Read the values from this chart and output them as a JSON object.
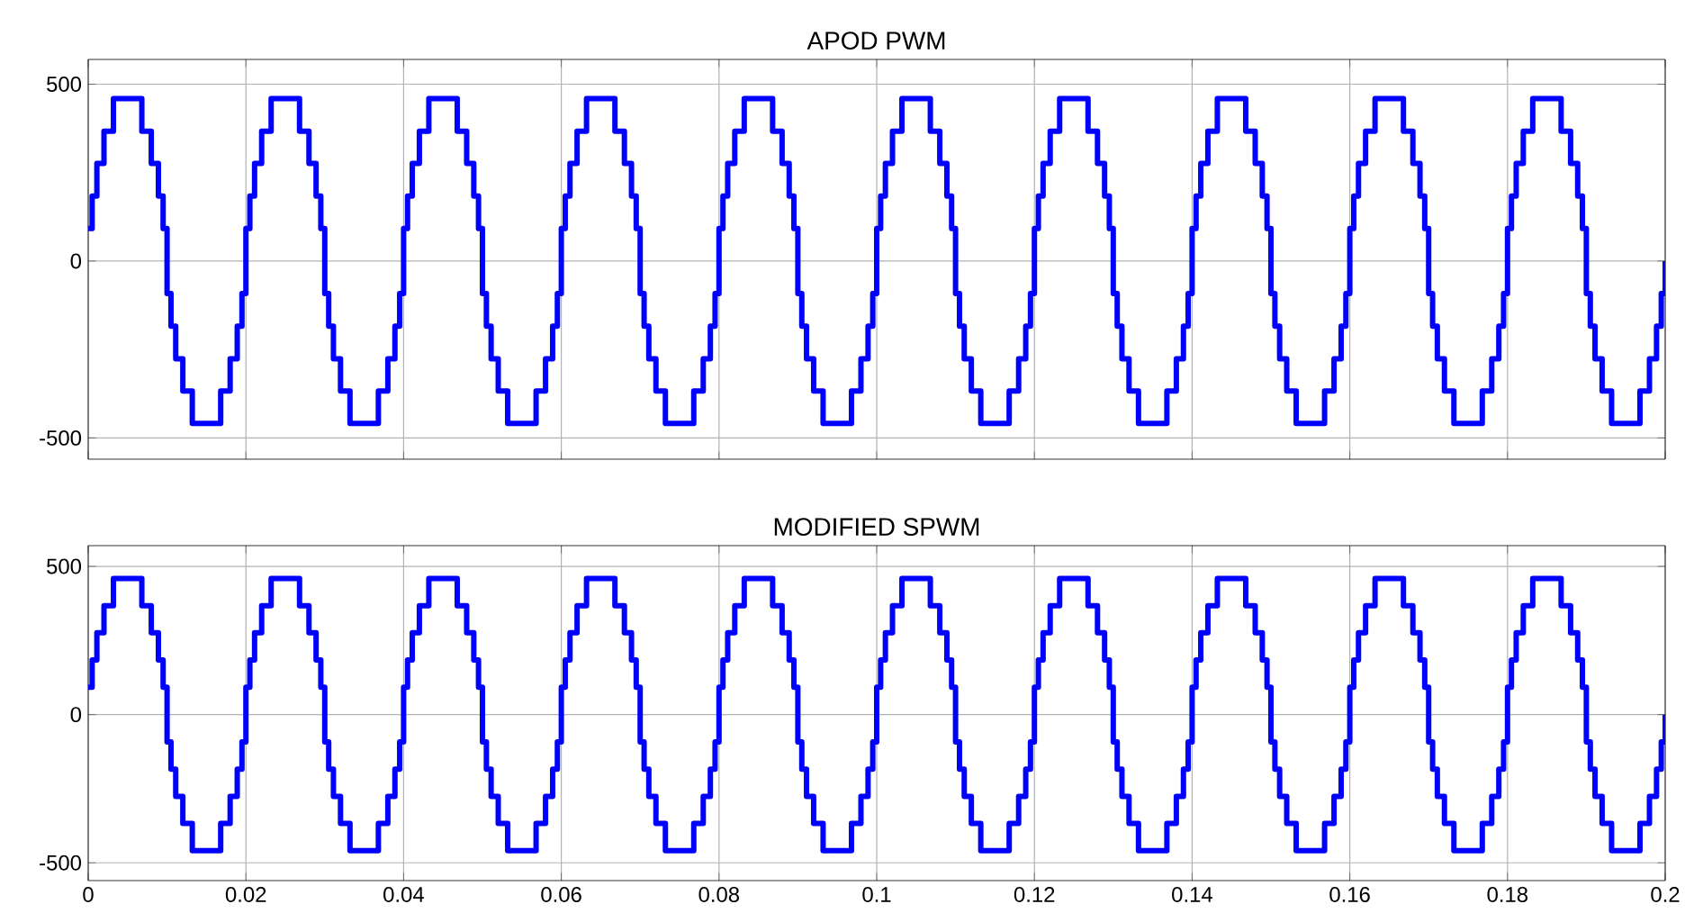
{
  "chart_data": [
    {
      "type": "step",
      "title": "APOD PWM",
      "xlim": [
        0,
        0.2
      ],
      "ylim": [
        -560,
        570
      ],
      "xticks": [
        0,
        0.02,
        0.04,
        0.06,
        0.08,
        0.1,
        0.12,
        0.14,
        0.16,
        0.18,
        0.2
      ],
      "yticks": [
        -500,
        0,
        500
      ],
      "grid": true,
      "tick_labels": "y",
      "marker": "none",
      "line_style": "solid",
      "series": [
        {
          "color": "#0000ff",
          "x": [
            0,
            0.0005,
            0.0011,
            0.002,
            0.0032,
            0.0068,
            0.008,
            0.0089,
            0.0095,
            0.01,
            0.0105,
            0.0111,
            0.012,
            0.0132,
            0.0168,
            0.018,
            0.0189,
            0.0195,
            0.02,
            0.0205,
            0.0211,
            0.022,
            0.0232,
            0.0268,
            0.028,
            0.0289,
            0.0295,
            0.03,
            0.0305,
            0.0311,
            0.032,
            0.0332,
            0.0368,
            0.038,
            0.0389,
            0.0395,
            0.04,
            0.0405,
            0.0411,
            0.042,
            0.0432,
            0.0468,
            0.048,
            0.0489,
            0.0495,
            0.05,
            0.0505,
            0.0511,
            0.052,
            0.0532,
            0.0568,
            0.058,
            0.0589,
            0.0595,
            0.06,
            0.0605,
            0.0611,
            0.062,
            0.0632,
            0.0668,
            0.068,
            0.0689,
            0.0695,
            0.07,
            0.0705,
            0.0711,
            0.072,
            0.0732,
            0.0768,
            0.078,
            0.0789,
            0.0795,
            0.08,
            0.0805,
            0.0811,
            0.082,
            0.0832,
            0.0868,
            0.088,
            0.0889,
            0.0895,
            0.09,
            0.0905,
            0.0911,
            0.092,
            0.0932,
            0.0968,
            0.098,
            0.0989,
            0.0995,
            0.1,
            0.1005,
            0.1011,
            0.102,
            0.1032,
            0.1068,
            0.108,
            0.1089,
            0.1095,
            0.11,
            0.1105,
            0.1111,
            0.112,
            0.1132,
            0.1168,
            0.118,
            0.1189,
            0.1195,
            0.12,
            0.1205,
            0.1211,
            0.122,
            0.1232,
            0.1268,
            0.128,
            0.1289,
            0.1295,
            0.13,
            0.1305,
            0.1311,
            0.132,
            0.1332,
            0.1368,
            0.138,
            0.1389,
            0.1395,
            0.14,
            0.1405,
            0.1411,
            0.142,
            0.1432,
            0.1468,
            0.148,
            0.1489,
            0.1495,
            0.15,
            0.1505,
            0.1511,
            0.152,
            0.1532,
            0.1568,
            0.158,
            0.1589,
            0.1595,
            0.16,
            0.1605,
            0.1611,
            0.162,
            0.1632,
            0.1668,
            0.168,
            0.1689,
            0.1695,
            0.17,
            0.1705,
            0.1711,
            0.172,
            0.1732,
            0.1768,
            0.178,
            0.1789,
            0.1795,
            0.18,
            0.1805,
            0.1811,
            0.182,
            0.1832,
            0.1868,
            0.188,
            0.1889,
            0.1895,
            0.19,
            0.1905,
            0.1911,
            0.192,
            0.1932,
            0.1968,
            0.198,
            0.1989,
            0.1995,
            0.2
          ],
          "values": [
            92,
            184,
            276,
            367,
            459,
            367,
            276,
            184,
            92,
            -92,
            -184,
            -276,
            -367,
            -459,
            -367,
            -276,
            -184,
            -92,
            92,
            184,
            276,
            367,
            459,
            367,
            276,
            184,
            92,
            -92,
            -184,
            -276,
            -367,
            -459,
            -367,
            -276,
            -184,
            -92,
            92,
            184,
            276,
            367,
            459,
            367,
            276,
            184,
            92,
            -92,
            -184,
            -276,
            -367,
            -459,
            -367,
            -276,
            -184,
            -92,
            92,
            184,
            276,
            367,
            459,
            367,
            276,
            184,
            92,
            -92,
            -184,
            -276,
            -367,
            -459,
            -367,
            -276,
            -184,
            -92,
            92,
            184,
            276,
            367,
            459,
            367,
            276,
            184,
            92,
            -92,
            -184,
            -276,
            -367,
            -459,
            -367,
            -276,
            -184,
            -92,
            92,
            184,
            276,
            367,
            459,
            367,
            276,
            184,
            92,
            -92,
            -184,
            -276,
            -367,
            -459,
            -367,
            -276,
            -184,
            -92,
            92,
            184,
            276,
            367,
            459,
            367,
            276,
            184,
            92,
            -92,
            -184,
            -276,
            -367,
            -459,
            -367,
            -276,
            -184,
            -92,
            92,
            184,
            276,
            367,
            459,
            367,
            276,
            184,
            92,
            -92,
            -184,
            -276,
            -367,
            -459,
            -367,
            -276,
            -184,
            -92,
            92,
            184,
            276,
            367,
            459,
            367,
            276,
            184,
            92,
            -92,
            -184,
            -276,
            -367,
            -459,
            -367,
            -276,
            -184,
            -92,
            92,
            184,
            276,
            367,
            459,
            367,
            276,
            184,
            92,
            -92,
            -184,
            -276,
            -367,
            -459,
            -367,
            -276,
            -184,
            -92,
            0
          ]
        }
      ]
    },
    {
      "type": "step",
      "title": "MODIFIED SPWM",
      "xlim": [
        0,
        0.2
      ],
      "ylim": [
        -560,
        570
      ],
      "xticks": [
        0,
        0.02,
        0.04,
        0.06,
        0.08,
        0.1,
        0.12,
        0.14,
        0.16,
        0.18,
        0.2
      ],
      "yticks": [
        -500,
        0,
        500
      ],
      "grid": true,
      "marker": "none",
      "line_style": "solid",
      "series": [
        {
          "color": "#0000ff",
          "x": [
            0,
            0.0005,
            0.0011,
            0.002,
            0.0032,
            0.0068,
            0.008,
            0.0089,
            0.0095,
            0.01,
            0.0105,
            0.0111,
            0.012,
            0.0132,
            0.0168,
            0.018,
            0.0189,
            0.0195,
            0.02,
            0.0205,
            0.0211,
            0.022,
            0.0232,
            0.0268,
            0.028,
            0.0289,
            0.0295,
            0.03,
            0.0305,
            0.0311,
            0.032,
            0.0332,
            0.0368,
            0.038,
            0.0389,
            0.0395,
            0.04,
            0.0405,
            0.0411,
            0.042,
            0.0432,
            0.0468,
            0.048,
            0.0489,
            0.0495,
            0.05,
            0.0505,
            0.0511,
            0.052,
            0.0532,
            0.0568,
            0.058,
            0.0589,
            0.0595,
            0.06,
            0.0605,
            0.0611,
            0.062,
            0.0632,
            0.0668,
            0.068,
            0.0689,
            0.0695,
            0.07,
            0.0705,
            0.0711,
            0.072,
            0.0732,
            0.0768,
            0.078,
            0.0789,
            0.0795,
            0.08,
            0.0805,
            0.0811,
            0.082,
            0.0832,
            0.0868,
            0.088,
            0.0889,
            0.0895,
            0.09,
            0.0905,
            0.0911,
            0.092,
            0.0932,
            0.0968,
            0.098,
            0.0989,
            0.0995,
            0.1,
            0.1005,
            0.1011,
            0.102,
            0.1032,
            0.1068,
            0.108,
            0.1089,
            0.1095,
            0.11,
            0.1105,
            0.1111,
            0.112,
            0.1132,
            0.1168,
            0.118,
            0.1189,
            0.1195,
            0.12,
            0.1205,
            0.1211,
            0.122,
            0.1232,
            0.1268,
            0.128,
            0.1289,
            0.1295,
            0.13,
            0.1305,
            0.1311,
            0.132,
            0.1332,
            0.1368,
            0.138,
            0.1389,
            0.1395,
            0.14,
            0.1405,
            0.1411,
            0.142,
            0.1432,
            0.1468,
            0.148,
            0.1489,
            0.1495,
            0.15,
            0.1505,
            0.1511,
            0.152,
            0.1532,
            0.1568,
            0.158,
            0.1589,
            0.1595,
            0.16,
            0.1605,
            0.1611,
            0.162,
            0.1632,
            0.1668,
            0.168,
            0.1689,
            0.1695,
            0.17,
            0.1705,
            0.1711,
            0.172,
            0.1732,
            0.1768,
            0.178,
            0.1789,
            0.1795,
            0.18,
            0.1805,
            0.1811,
            0.182,
            0.1832,
            0.1868,
            0.188,
            0.1889,
            0.1895,
            0.19,
            0.1905,
            0.1911,
            0.192,
            0.1932,
            0.1968,
            0.198,
            0.1989,
            0.1995,
            0.2
          ],
          "values": [
            92,
            184,
            276,
            367,
            459,
            367,
            276,
            184,
            92,
            -92,
            -184,
            -276,
            -367,
            -459,
            -367,
            -276,
            -184,
            -92,
            92,
            184,
            276,
            367,
            459,
            367,
            276,
            184,
            92,
            -92,
            -184,
            -276,
            -367,
            -459,
            -367,
            -276,
            -184,
            -92,
            92,
            184,
            276,
            367,
            459,
            367,
            276,
            184,
            92,
            -92,
            -184,
            -276,
            -367,
            -459,
            -367,
            -276,
            -184,
            -92,
            92,
            184,
            276,
            367,
            459,
            367,
            276,
            184,
            92,
            -92,
            -184,
            -276,
            -367,
            -459,
            -367,
            -276,
            -184,
            -92,
            92,
            184,
            276,
            367,
            459,
            367,
            276,
            184,
            92,
            -92,
            -184,
            -276,
            -367,
            -459,
            -367,
            -276,
            -184,
            -92,
            92,
            184,
            276,
            367,
            459,
            367,
            276,
            184,
            92,
            -92,
            -184,
            -276,
            -367,
            -459,
            -367,
            -276,
            -184,
            -92,
            92,
            184,
            276,
            367,
            459,
            367,
            276,
            184,
            92,
            -92,
            -184,
            -276,
            -367,
            -459,
            -367,
            -276,
            -184,
            -92,
            92,
            184,
            276,
            367,
            459,
            367,
            276,
            184,
            92,
            -92,
            -184,
            -276,
            -367,
            -459,
            -367,
            -276,
            -184,
            -92,
            92,
            184,
            276,
            367,
            459,
            367,
            276,
            184,
            92,
            -92,
            -184,
            -276,
            -367,
            -459,
            -367,
            -276,
            -184,
            -92,
            92,
            184,
            276,
            367,
            459,
            367,
            276,
            184,
            92,
            -92,
            -184,
            -276,
            -367,
            -459,
            -367,
            -276,
            -184,
            -92,
            0
          ]
        }
      ]
    }
  ]
}
